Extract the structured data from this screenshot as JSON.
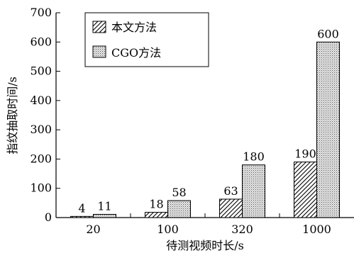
{
  "chart_data": {
    "type": "bar",
    "title": "",
    "xlabel": "待测视频时长/s",
    "ylabel": "指纹抽取时间/s",
    "categories": [
      "20",
      "100",
      "320",
      "1000"
    ],
    "ylim": [
      0,
      700
    ],
    "yticks": [
      0,
      100,
      200,
      300,
      400,
      500,
      600,
      700
    ],
    "grid": false,
    "legend_position": "top-left",
    "series": [
      {
        "name": "本文方法",
        "values": [
          4,
          18,
          63,
          190
        ],
        "pattern": "diagonal-hatch"
      },
      {
        "name": "CGO方法",
        "values": [
          11,
          58,
          180,
          600
        ],
        "pattern": "dotted"
      }
    ]
  }
}
